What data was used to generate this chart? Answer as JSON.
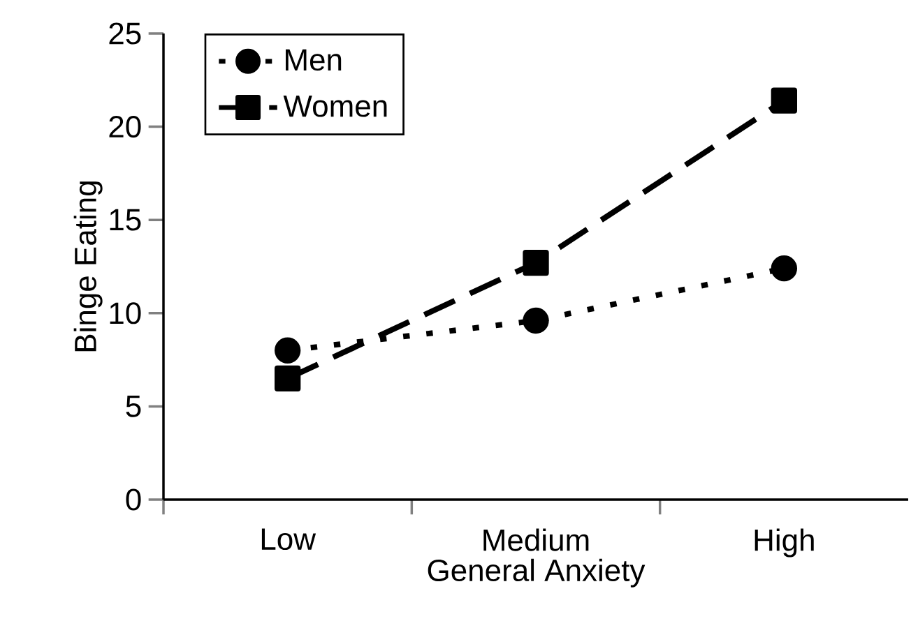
{
  "chart_data": {
    "type": "line",
    "xlabel": "General Anxiety",
    "ylabel": "Binge Eating",
    "categories": [
      "Low",
      "Medium",
      "High"
    ],
    "series": [
      {
        "name": "Men",
        "color": "#000000",
        "values": [
          8.0,
          9.6,
          12.4
        ],
        "marker": "circle",
        "line_style": "dotted"
      },
      {
        "name": "Women",
        "color": "#000000",
        "values": [
          6.5,
          12.7,
          21.4
        ],
        "marker": "square",
        "line_style": "dashed"
      }
    ],
    "ylim": [
      0,
      25
    ],
    "yticks": [
      0,
      5,
      10,
      15,
      20,
      25
    ],
    "grid": false,
    "legend": "top left"
  }
}
